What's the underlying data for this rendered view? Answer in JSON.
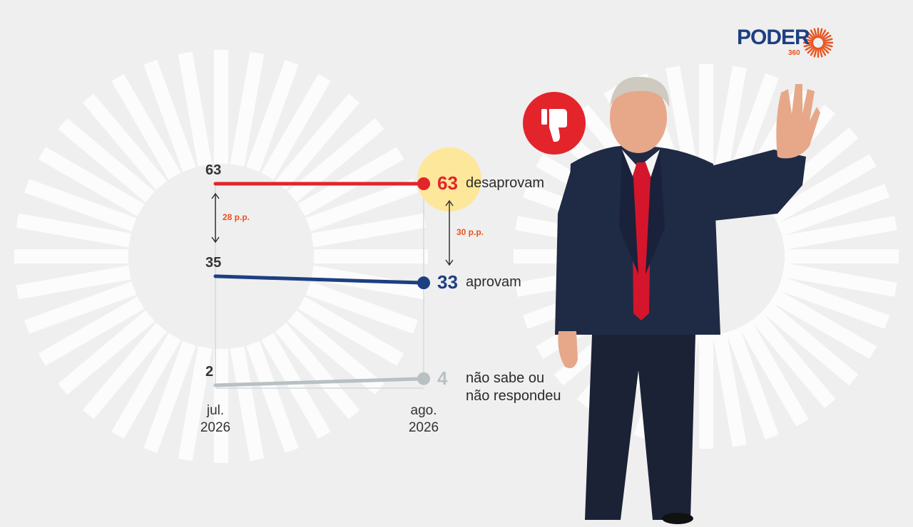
{
  "brand": {
    "name": "PODER",
    "sub": "360",
    "primary_color": "#1d3f82",
    "accent_color": "#e8531f"
  },
  "icons": {
    "thumbs_down": "thumbs-down-icon",
    "logo_sun": "sun-icon"
  },
  "chart_data": {
    "type": "line",
    "x": [
      "jul. 2026",
      "ago. 2026"
    ],
    "x_tick_labels": [
      [
        "jul.",
        "2026"
      ],
      [
        "ago.",
        "2026"
      ]
    ],
    "ylim": [
      0,
      70
    ],
    "grid": false,
    "series": [
      {
        "name": "desaprovam",
        "values": [
          63,
          63
        ],
        "color": "#e3242b",
        "highlight_last": true
      },
      {
        "name": "aprovam",
        "values": [
          35,
          33
        ],
        "color": "#1d3f82"
      },
      {
        "name_lines": [
          "não sabe ou",
          "não respondeu"
        ],
        "values": [
          2,
          4
        ],
        "color": "#b9c0c4"
      }
    ],
    "annotations": [
      {
        "text": "28 p.p.",
        "x_index": 0,
        "from": 63,
        "to": 35
      },
      {
        "text": "30 p.p.",
        "x_index": 1,
        "from": 63,
        "to": 33
      }
    ]
  }
}
